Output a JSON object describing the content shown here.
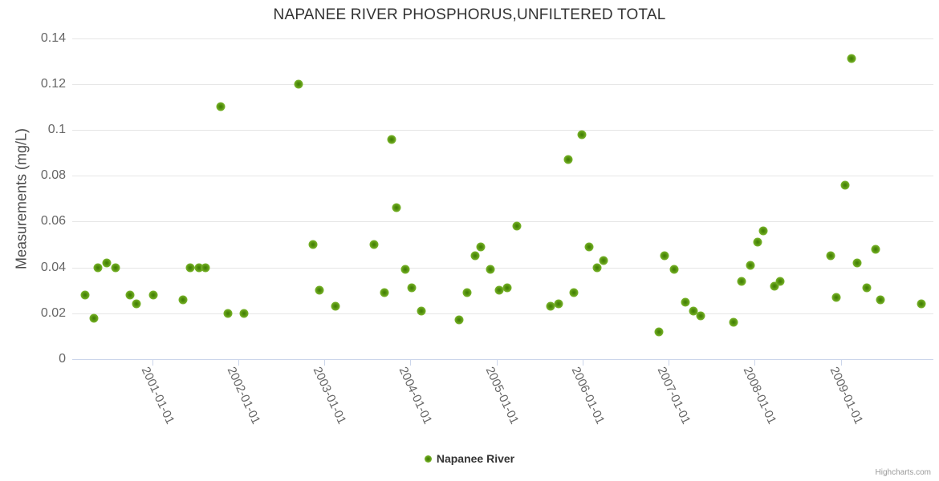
{
  "title": "NAPANEE RIVER PHOSPHORUS,UNFILTERED TOTAL",
  "credits_label": "Highcharts.com",
  "legend": {
    "series_label": "Napanee River",
    "marker_color": "#7ab52d"
  },
  "chart_data": {
    "type": "scatter",
    "title": "NAPANEE RIVER PHOSPHORUS,UNFILTERED TOTAL",
    "xlabel": "",
    "ylabel": "Measurements (mg/L)",
    "legend_position": "bottom-center",
    "grid": "horizontal-only",
    "series_color": "#7ab52d",
    "ylim": [
      0,
      0.14
    ],
    "y_ticks": [
      {
        "value": 0.0,
        "label": "0"
      },
      {
        "value": 0.02,
        "label": "0.02"
      },
      {
        "value": 0.04,
        "label": "0.04"
      },
      {
        "value": 0.06,
        "label": "0.06"
      },
      {
        "value": 0.08,
        "label": "0.08"
      },
      {
        "value": 0.1,
        "label": "0.1"
      },
      {
        "value": 0.12,
        "label": "0.12"
      },
      {
        "value": 0.14,
        "label": "0.14"
      }
    ],
    "x_ticks": [
      "2001-01-01",
      "2002-01-01",
      "2003-01-01",
      "2004-01-01",
      "2005-01-01",
      "2006-01-01",
      "2007-01-01",
      "2008-01-01",
      "2009-01-01"
    ],
    "xlim": [
      "2000-01-26",
      "2010-01-29"
    ],
    "series": [
      {
        "name": "Napanee River",
        "points": [
          [
            "2000-03-20",
            0.028
          ],
          [
            "2000-04-26",
            0.018
          ],
          [
            "2000-05-13",
            0.04
          ],
          [
            "2000-06-20",
            0.042
          ],
          [
            "2000-07-28",
            0.04
          ],
          [
            "2000-09-28",
            0.028
          ],
          [
            "2000-10-26",
            0.024
          ],
          [
            "2001-01-03",
            0.028
          ],
          [
            "2001-05-12",
            0.026
          ],
          [
            "2001-06-10",
            0.04
          ],
          [
            "2001-07-19",
            0.04
          ],
          [
            "2001-08-14",
            0.04
          ],
          [
            "2001-10-19",
            0.11
          ],
          [
            "2001-11-17",
            0.02
          ],
          [
            "2002-01-24",
            0.02
          ],
          [
            "2002-09-13",
            0.12
          ],
          [
            "2002-11-15",
            0.05
          ],
          [
            "2002-12-11",
            0.03
          ],
          [
            "2003-02-18",
            0.023
          ],
          [
            "2003-07-30",
            0.05
          ],
          [
            "2003-09-12",
            0.029
          ],
          [
            "2003-10-12",
            0.096
          ],
          [
            "2003-11-04",
            0.066
          ],
          [
            "2003-12-10",
            0.039
          ],
          [
            "2004-01-06",
            0.031
          ],
          [
            "2004-02-15",
            0.021
          ],
          [
            "2004-07-27",
            0.017
          ],
          [
            "2004-08-29",
            0.029
          ],
          [
            "2004-10-03",
            0.045
          ],
          [
            "2004-10-26",
            0.049
          ],
          [
            "2004-12-07",
            0.039
          ],
          [
            "2005-01-11",
            0.03
          ],
          [
            "2005-02-14",
            0.031
          ],
          [
            "2005-03-27",
            0.058
          ],
          [
            "2005-08-19",
            0.023
          ],
          [
            "2005-09-20",
            0.024
          ],
          [
            "2005-11-02",
            0.087
          ],
          [
            "2005-11-26",
            0.029
          ],
          [
            "2005-12-30",
            0.098
          ],
          [
            "2006-01-29",
            0.049
          ],
          [
            "2006-03-03",
            0.04
          ],
          [
            "2006-03-31",
            0.043
          ],
          [
            "2006-11-20",
            0.012
          ],
          [
            "2006-12-16",
            0.045
          ],
          [
            "2007-01-26",
            0.039
          ],
          [
            "2007-03-14",
            0.025
          ],
          [
            "2007-04-17",
            0.021
          ],
          [
            "2007-05-18",
            0.019
          ],
          [
            "2007-10-04",
            0.016
          ],
          [
            "2007-11-07",
            0.034
          ],
          [
            "2007-12-13",
            0.041
          ],
          [
            "2008-01-13",
            0.051
          ],
          [
            "2008-02-08",
            0.056
          ],
          [
            "2008-03-27",
            0.032
          ],
          [
            "2008-04-19",
            0.034
          ],
          [
            "2008-11-18",
            0.045
          ],
          [
            "2008-12-14",
            0.027
          ],
          [
            "2009-01-18",
            0.076
          ],
          [
            "2009-02-14",
            0.131
          ],
          [
            "2009-03-10",
            0.042
          ],
          [
            "2009-04-21",
            0.031
          ],
          [
            "2009-05-28",
            0.048
          ],
          [
            "2009-06-20",
            0.026
          ],
          [
            "2009-12-09",
            0.024
          ]
        ]
      }
    ]
  }
}
